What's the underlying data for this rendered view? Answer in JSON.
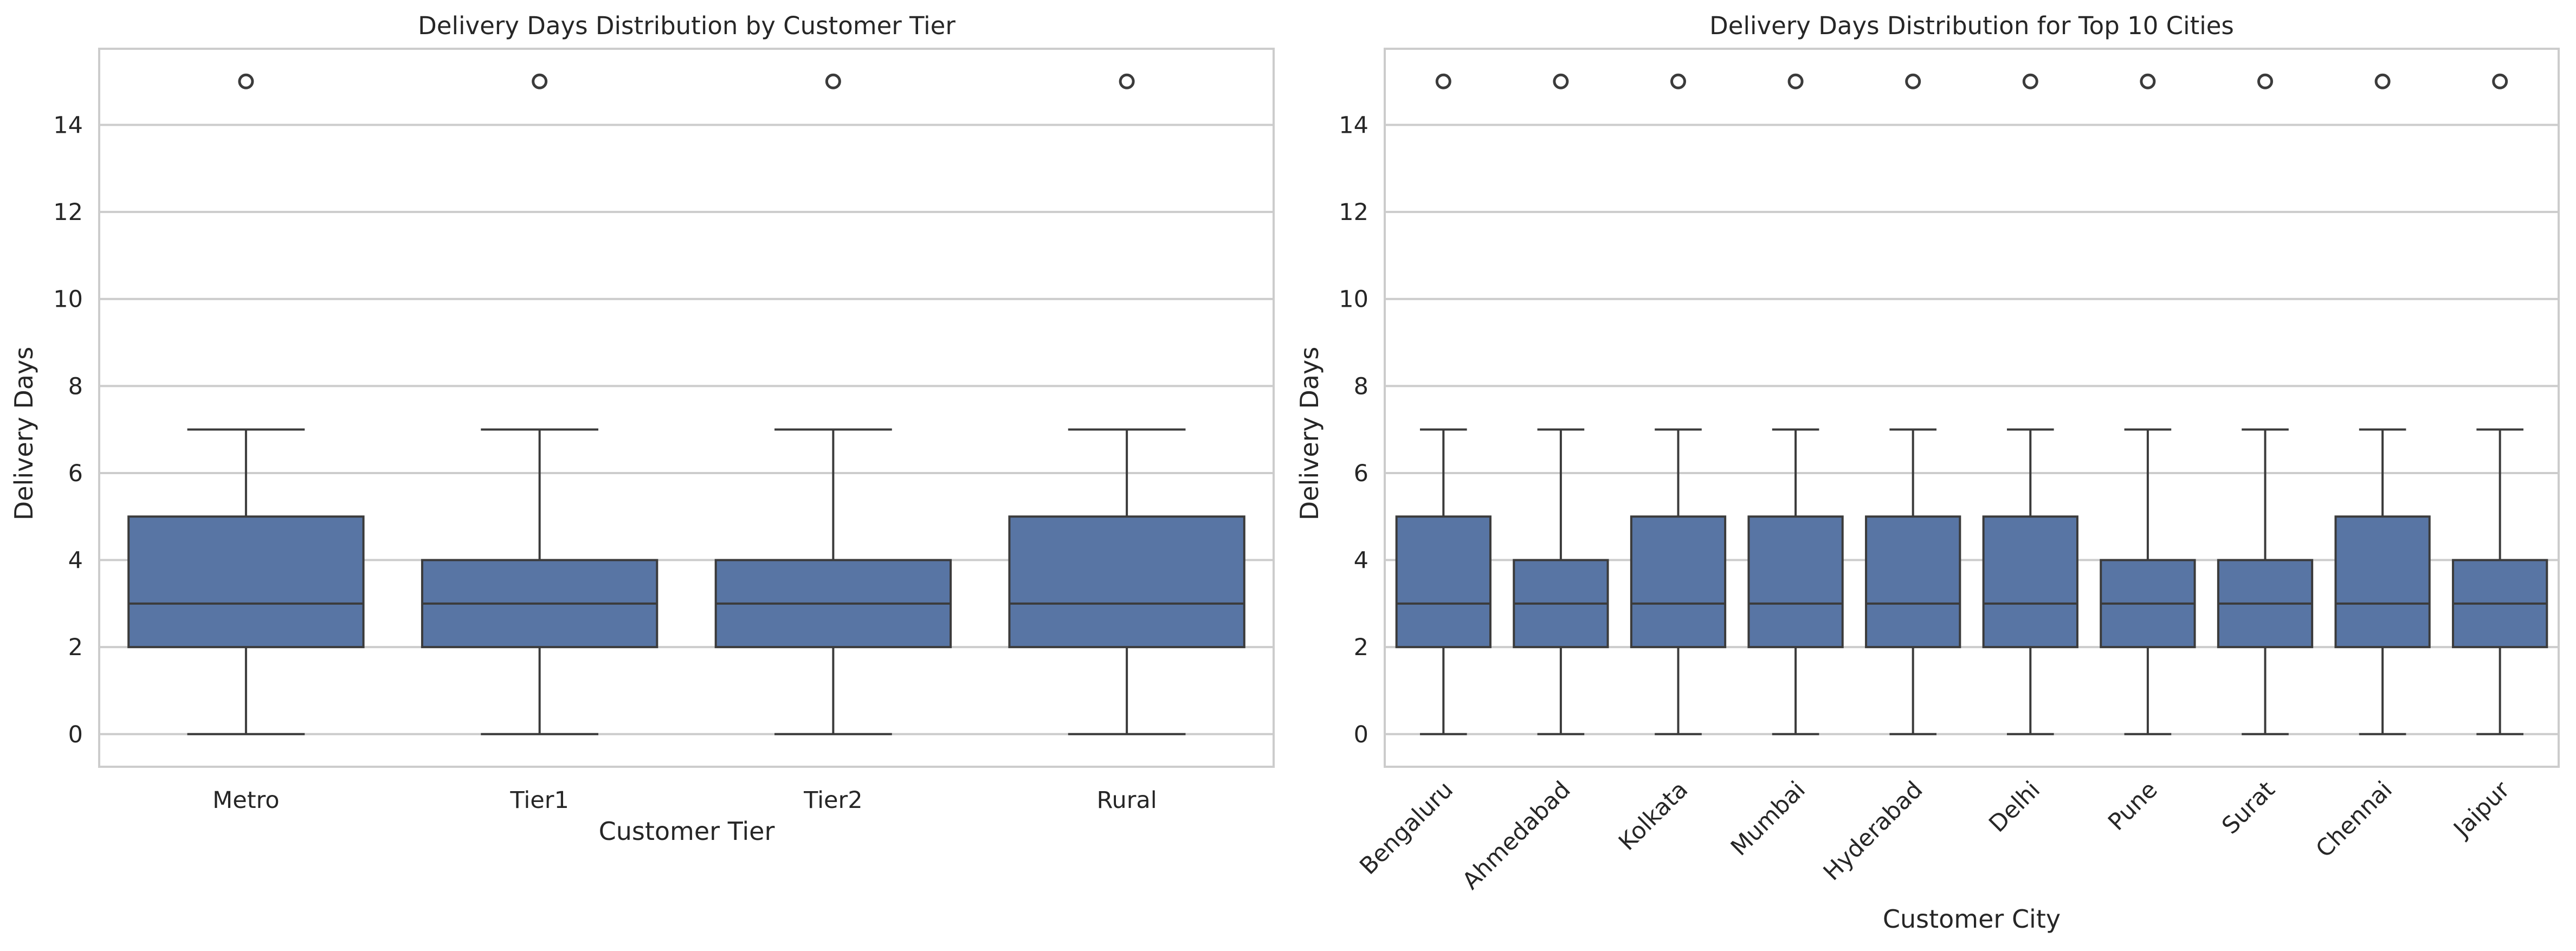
{
  "colors": {
    "box_fill": "#5875a4",
    "line": "#3b3b3b",
    "grid": "#cccccc",
    "frame": "#cccccc",
    "text": "#262626",
    "background": "#ffffff"
  },
  "chart_data": [
    {
      "type": "box",
      "title": "Delivery Days Distribution by Customer Tier",
      "xlabel": "Customer Tier",
      "ylabel": "Delivery Days",
      "ylim": [
        -0.75,
        15.75
      ],
      "yticks": [
        0,
        2,
        4,
        6,
        8,
        10,
        12,
        14
      ],
      "grid": "horizontal",
      "categories": [
        "Metro",
        "Tier1",
        "Tier2",
        "Rural"
      ],
      "boxes": [
        {
          "category": "Metro",
          "whisker_low": 0,
          "q1": 2,
          "median": 3,
          "q3": 5,
          "whisker_high": 7,
          "outliers": [
            15
          ]
        },
        {
          "category": "Tier1",
          "whisker_low": 0,
          "q1": 2,
          "median": 3,
          "q3": 4,
          "whisker_high": 7,
          "outliers": [
            15
          ]
        },
        {
          "category": "Tier2",
          "whisker_low": 0,
          "q1": 2,
          "median": 3,
          "q3": 4,
          "whisker_high": 7,
          "outliers": [
            15
          ]
        },
        {
          "category": "Rural",
          "whisker_low": 0,
          "q1": 2,
          "median": 3,
          "q3": 5,
          "whisker_high": 7,
          "outliers": [
            15
          ]
        }
      ]
    },
    {
      "type": "box",
      "title": "Delivery Days Distribution for Top 10 Cities",
      "xlabel": "Customer City",
      "ylabel": "Delivery Days",
      "ylim": [
        -0.75,
        15.75
      ],
      "yticks": [
        0,
        2,
        4,
        6,
        8,
        10,
        12,
        14
      ],
      "grid": "horizontal",
      "categories": [
        "Bengaluru",
        "Ahmedabad",
        "Kolkata",
        "Mumbai",
        "Hyderabad",
        "Delhi",
        "Pune",
        "Surat",
        "Chennai",
        "Jaipur"
      ],
      "boxes": [
        {
          "category": "Bengaluru",
          "whisker_low": 0,
          "q1": 2,
          "median": 3,
          "q3": 5,
          "whisker_high": 7,
          "outliers": [
            15
          ]
        },
        {
          "category": "Ahmedabad",
          "whisker_low": 0,
          "q1": 2,
          "median": 3,
          "q3": 4,
          "whisker_high": 7,
          "outliers": [
            15
          ]
        },
        {
          "category": "Kolkata",
          "whisker_low": 0,
          "q1": 2,
          "median": 3,
          "q3": 5,
          "whisker_high": 7,
          "outliers": [
            15
          ]
        },
        {
          "category": "Mumbai",
          "whisker_low": 0,
          "q1": 2,
          "median": 3,
          "q3": 5,
          "whisker_high": 7,
          "outliers": [
            15
          ]
        },
        {
          "category": "Hyderabad",
          "whisker_low": 0,
          "q1": 2,
          "median": 3,
          "q3": 5,
          "whisker_high": 7,
          "outliers": [
            15
          ]
        },
        {
          "category": "Delhi",
          "whisker_low": 0,
          "q1": 2,
          "median": 3,
          "q3": 5,
          "whisker_high": 7,
          "outliers": [
            15
          ]
        },
        {
          "category": "Pune",
          "whisker_low": 0,
          "q1": 2,
          "median": 3,
          "q3": 4,
          "whisker_high": 7,
          "outliers": [
            15
          ]
        },
        {
          "category": "Surat",
          "whisker_low": 0,
          "q1": 2,
          "median": 3,
          "q3": 4,
          "whisker_high": 7,
          "outliers": [
            15
          ]
        },
        {
          "category": "Chennai",
          "whisker_low": 0,
          "q1": 2,
          "median": 3,
          "q3": 5,
          "whisker_high": 7,
          "outliers": [
            15
          ]
        },
        {
          "category": "Jaipur",
          "whisker_low": 0,
          "q1": 2,
          "median": 3,
          "q3": 4,
          "whisker_high": 7,
          "outliers": [
            15
          ]
        }
      ]
    }
  ]
}
